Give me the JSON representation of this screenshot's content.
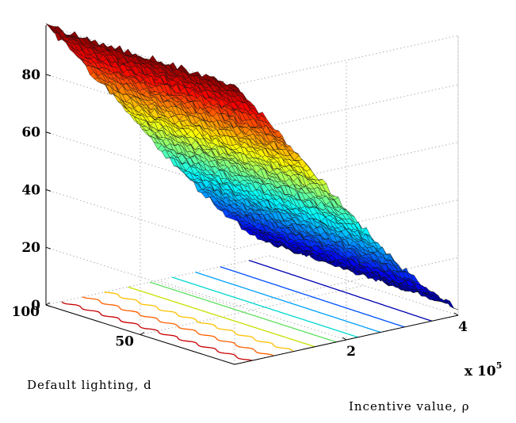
{
  "chart_data": {
    "type": "surface3d",
    "xlabel": "Default lighting, d",
    "ylabel": "Incentive value, ρ",
    "zlabel": "",
    "y_multiplier_label": "x 10",
    "y_multiplier_exponent": "5",
    "zticks": [
      0,
      20,
      40,
      60,
      80
    ],
    "zlim": [
      0,
      97
    ],
    "dticks": [
      100,
      50
    ],
    "dlim": [
      0,
      100
    ],
    "rhoticks": [
      2,
      4
    ],
    "rholim": [
      0,
      4
    ],
    "grid": true,
    "colormap": "jet",
    "z_at_corners": {
      "d100_rho0": 97,
      "d0_rho0": 97,
      "d100_rho4": 5,
      "d0_rho4": 3
    },
    "contour_levels": [
      10,
      20,
      30,
      40,
      50,
      60,
      70,
      80,
      90
    ],
    "contour_colors": [
      "#0000b0",
      "#0050ff",
      "#00a0ff",
      "#00d8d0",
      "#60e060",
      "#c8e000",
      "#ffc000",
      "#ff6000",
      "#c80000"
    ]
  }
}
